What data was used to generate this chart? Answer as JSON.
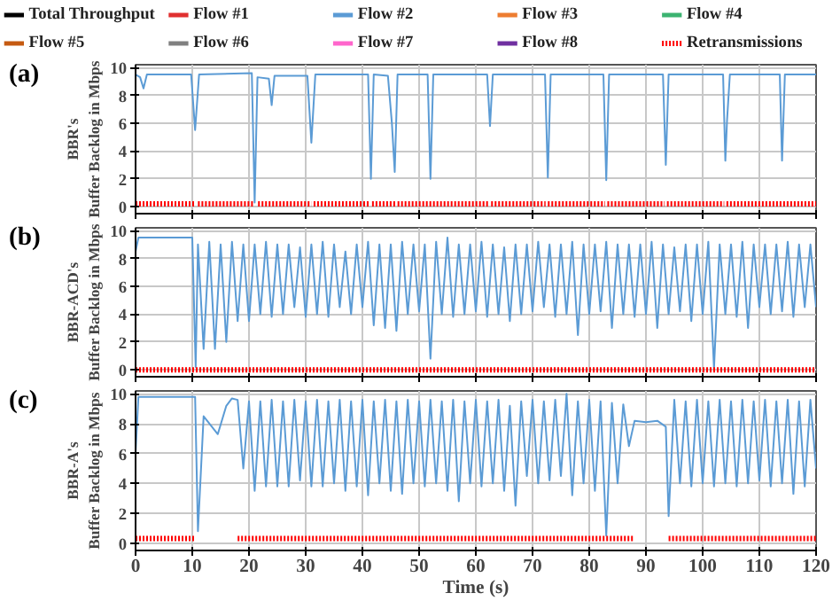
{
  "chart_data": [
    {
      "type": "line",
      "title": "(a)",
      "ylabel": "BBR's\nBuffer Backlog in Mbps",
      "xlim": [
        0,
        120
      ],
      "ylim": [
        -0.5,
        10.2
      ],
      "xticks": [
        0,
        10,
        20,
        30,
        40,
        50,
        60,
        70,
        80,
        90,
        100,
        110,
        120
      ],
      "yticks": [
        0,
        2,
        4,
        6,
        8,
        10
      ],
      "grid": true,
      "legend": "top",
      "tick_labels": "y",
      "series": [
        {
          "name": "Total Throughput",
          "color": "#000000"
        },
        {
          "name": "Flow #1",
          "color": "#e03030"
        },
        {
          "name": "Flow #2",
          "color": "#5b9bd5",
          "x": [
            0,
            0.8,
            1.4,
            2,
            9.8,
            10.5,
            11.2,
            20.5,
            21,
            21.5,
            23.5,
            24,
            24.5,
            30.3,
            31,
            31.7,
            41,
            41.5,
            42,
            44.5,
            45.2,
            45.7,
            46.2,
            51.5,
            52,
            52.5,
            62,
            62.5,
            63,
            72.2,
            72.7,
            73.2,
            82.5,
            83,
            83.5,
            93,
            93.5,
            94,
            103.6,
            104,
            104.3,
            104.8,
            113.6,
            114,
            114.5,
            120
          ],
          "values": [
            9.5,
            9.3,
            8.5,
            9.5,
            9.5,
            5.5,
            9.5,
            9.6,
            0.3,
            9.3,
            9.2,
            7.3,
            9.4,
            9.4,
            4.6,
            9.5,
            9.5,
            2,
            9.5,
            9.4,
            6,
            2.5,
            9.5,
            9.5,
            2,
            9.5,
            9.5,
            5.8,
            9.5,
            9.5,
            2.1,
            9.5,
            9.5,
            1.9,
            9.5,
            9.5,
            3,
            9.5,
            9.5,
            3.3,
            6.2,
            9.5,
            9.5,
            3.3,
            9.5,
            9.5
          ]
        },
        {
          "name": "Flow #3",
          "color": "#ed7d31"
        },
        {
          "name": "Flow #4",
          "color": "#3cb371"
        },
        {
          "name": "Flow #5",
          "color": "#c55a11"
        },
        {
          "name": "Flow #6",
          "color": "#808080"
        },
        {
          "name": "Flow #7",
          "color": "#ff66cc"
        },
        {
          "name": "Flow #8",
          "color": "#7030a0"
        },
        {
          "name": "Retransmissions",
          "color": "#ff0000",
          "line_style": "dotted",
          "x": [
            0,
            10.6,
            10.8,
            11,
            21,
            21.3,
            21.6,
            31,
            31.2,
            31.4,
            41.3,
            41.5,
            41.7,
            45.8,
            46,
            46.2,
            62.3,
            62.5,
            62.7,
            72.3,
            72.5,
            72.7,
            82.8,
            83,
            83.2,
            93.3,
            93.5,
            93.7,
            103.8,
            104,
            104.2,
            120
          ],
          "values": [
            0.2,
            0.2,
            null,
            0.2,
            0.2,
            null,
            0.2,
            0.2,
            null,
            0.2,
            0.2,
            null,
            0.2,
            0.2,
            null,
            0.2,
            0.2,
            null,
            0.2,
            0.2,
            null,
            0.2,
            0.2,
            null,
            0.2,
            0.2,
            null,
            0.2,
            0.2,
            null,
            0.2,
            0.2
          ]
        }
      ]
    },
    {
      "type": "line",
      "title": "(b)",
      "ylabel": "BBR-ACD's\nBuffer Backlog in Mbps",
      "xlim": [
        0,
        120
      ],
      "ylim": [
        -0.5,
        10.2
      ],
      "xticks": [
        0,
        10,
        20,
        30,
        40,
        50,
        60,
        70,
        80,
        90,
        100,
        110,
        120
      ],
      "yticks": [
        0,
        2,
        4,
        6,
        8,
        10
      ],
      "grid": true,
      "tick_labels": "y",
      "series": [
        {
          "color": "#5b9bd5",
          "x": [
            0,
            0.5,
            10,
            10.6,
            11,
            12,
            13,
            14,
            15,
            16,
            17,
            18,
            19,
            20,
            21,
            22,
            23,
            24,
            25,
            26,
            27,
            28,
            29,
            30,
            31,
            32,
            33,
            34,
            35,
            36,
            37,
            38,
            39,
            40,
            41,
            42,
            43,
            44,
            45,
            46,
            47,
            48,
            49,
            50,
            51,
            52,
            53,
            54,
            55,
            56,
            57,
            58,
            59,
            60,
            61,
            62,
            63,
            64,
            65,
            66,
            67,
            68,
            69,
            70,
            71,
            72,
            73,
            74,
            75,
            76,
            77,
            78,
            79,
            80,
            81,
            82,
            83,
            84,
            85,
            86,
            87,
            88,
            89,
            90,
            91,
            92,
            93,
            94,
            95,
            96,
            97,
            98,
            99,
            100,
            101,
            102,
            103,
            104,
            105,
            106,
            107,
            108,
            109,
            110,
            111,
            112,
            113,
            114,
            115,
            116,
            117,
            118,
            119,
            120
          ],
          "values": [
            8.5,
            9.5,
            9.5,
            0.2,
            9,
            1.5,
            9.2,
            1.5,
            9,
            2,
            9.2,
            3.5,
            9,
            3.5,
            9,
            4,
            9.2,
            3.8,
            9,
            4,
            9,
            4.5,
            8.8,
            3.8,
            9,
            4,
            9.2,
            3.8,
            9,
            4.5,
            8.5,
            4,
            9,
            4.5,
            9.2,
            3.2,
            9,
            3,
            9,
            2.8,
            9.2,
            4,
            9,
            4.2,
            9,
            0.8,
            9.2,
            4,
            9.5,
            3.8,
            9,
            4,
            9,
            4.2,
            9.2,
            3.8,
            9,
            4,
            8.8,
            3.5,
            9,
            4,
            9,
            4.2,
            9.2,
            4.5,
            9,
            3.8,
            9,
            4,
            9.2,
            2.5,
            9,
            4,
            9,
            4.2,
            9.2,
            3,
            9,
            4,
            9,
            3.8,
            9,
            4,
            9.2,
            3,
            9,
            4,
            8.8,
            4.2,
            9,
            3.5,
            9,
            4,
            9.2,
            0.1,
            9,
            4,
            9,
            3.8,
            9.2,
            3,
            9,
            4.5,
            9,
            4,
            9,
            4.2,
            9.2,
            3.8,
            9,
            4.5,
            9,
            4.5
          ]
        },
        {
          "color": "#ff0000",
          "line_style": "dotted",
          "x": [
            0,
            120
          ],
          "values": [
            0,
            0
          ]
        }
      ]
    },
    {
      "type": "line",
      "title": "(c)",
      "ylabel": "BBR-A's\nBuffer Backlog in Mbps",
      "xlabel": "Time (s)",
      "xlim": [
        0,
        120
      ],
      "ylim": [
        -0.5,
        10.2
      ],
      "xticks": [
        0,
        10,
        20,
        30,
        40,
        50,
        60,
        70,
        80,
        90,
        100,
        110,
        120
      ],
      "yticks": [
        0,
        2,
        4,
        6,
        8,
        10
      ],
      "grid": true,
      "series": [
        {
          "color": "#5b9bd5",
          "x": [
            0,
            0.5,
            10.5,
            11,
            12,
            14.5,
            16,
            17,
            18,
            19,
            20,
            21,
            22,
            23,
            24,
            25,
            26,
            27,
            28,
            29,
            30,
            31,
            32,
            33,
            34,
            35,
            36,
            37,
            38,
            39,
            40,
            41,
            42,
            43,
            44,
            45,
            46,
            47,
            48,
            49,
            50,
            51,
            52,
            53,
            54,
            55,
            56,
            57,
            58,
            59,
            60,
            61,
            62,
            63,
            64,
            65,
            66,
            67,
            68,
            69,
            70,
            71,
            72,
            73,
            74,
            75,
            76,
            77,
            78,
            79,
            80,
            81,
            82,
            83,
            84,
            85,
            86,
            87,
            88,
            90,
            92,
            93.5,
            94,
            95,
            96,
            97,
            98,
            99,
            100,
            101,
            102,
            103,
            104,
            105,
            106,
            107,
            108,
            109,
            110,
            111,
            112,
            113,
            114,
            115,
            116,
            117,
            118,
            119,
            120
          ],
          "values": [
            6,
            9.8,
            9.8,
            0.8,
            8.5,
            7.3,
            9.2,
            9.7,
            9.6,
            5,
            9.5,
            3.5,
            9.5,
            3.8,
            9.6,
            3.8,
            9.5,
            3.8,
            9.6,
            4.2,
            9.5,
            3.8,
            9.6,
            3.8,
            9.5,
            4,
            9.6,
            3.5,
            9.5,
            3.8,
            9.6,
            3.2,
            9.5,
            4,
            9.6,
            3.5,
            9.5,
            3.3,
            9.6,
            4,
            9.5,
            3.8,
            9.6,
            4,
            9.5,
            3.5,
            9.6,
            2.8,
            9.5,
            4,
            9.6,
            3.8,
            9.5,
            4,
            9.6,
            3.5,
            9.2,
            2.5,
            9.5,
            4.5,
            9.6,
            4,
            9.5,
            4.2,
            9.6,
            4.5,
            10,
            3.2,
            9.5,
            4,
            9.6,
            3.5,
            9.5,
            0.5,
            9.4,
            4,
            9.3,
            6.5,
            8.2,
            8.1,
            8.2,
            7.8,
            1.8,
            9.6,
            4,
            9.5,
            3.8,
            9.6,
            4,
            9.5,
            3.8,
            9.6,
            4,
            9.5,
            3.8,
            9.6,
            4,
            9.5,
            4.2,
            9.6,
            3.8,
            9.5,
            4,
            9.6,
            3.3,
            9.5,
            3.8,
            9.6,
            5
          ]
        },
        {
          "color": "#ff0000",
          "line_style": "dotted",
          "x": [
            0,
            10.5,
            11,
            18,
            88,
            89,
            94,
            120
          ],
          "values": [
            0.3,
            0.3,
            null,
            0.3,
            0.3,
            null,
            0.3,
            0.3
          ]
        }
      ]
    }
  ]
}
